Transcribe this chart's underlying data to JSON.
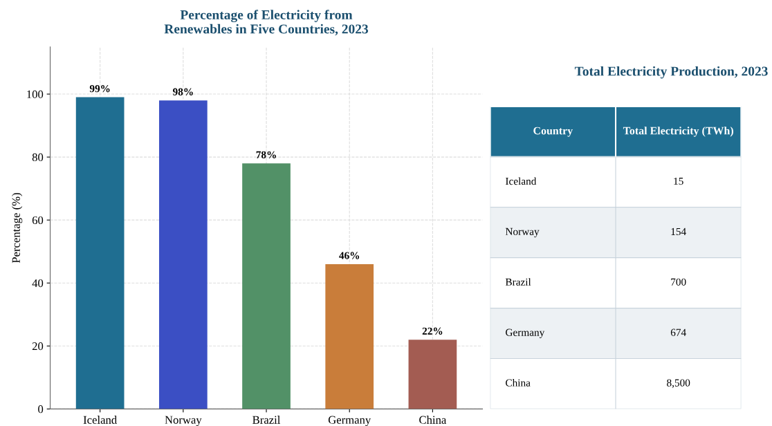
{
  "chart_data": [
    {
      "type": "bar",
      "title": "Percentage of Electricity from\nRenewables in Five Countries, 2023",
      "ylabel": "Percentage (%)",
      "categories": [
        "Iceland",
        "Norway",
        "Brazil",
        "Germany",
        "China"
      ],
      "values": [
        99,
        98,
        78,
        46,
        22
      ],
      "value_labels": [
        "99%",
        "98%",
        "78%",
        "46%",
        "22%"
      ],
      "colors": [
        "#1f6e91",
        "#3b4fc4",
        "#529167",
        "#c97d3a",
        "#a35c52"
      ],
      "ylim": [
        0,
        115
      ],
      "yticks": [
        0,
        20,
        40,
        60,
        80,
        100
      ],
      "grid": true
    },
    {
      "type": "other",
      "title": "Total Electricity Production, 2023",
      "annotations": [
        "Country",
        "Total Electricity (TWh)"
      ],
      "categories": [
        "Iceland",
        "Norway",
        "Brazil",
        "Germany",
        "China"
      ],
      "values": [
        15,
        154,
        700,
        674,
        8500
      ],
      "value_labels": [
        "15",
        "154",
        "700",
        "674",
        "8,500"
      ]
    }
  ]
}
